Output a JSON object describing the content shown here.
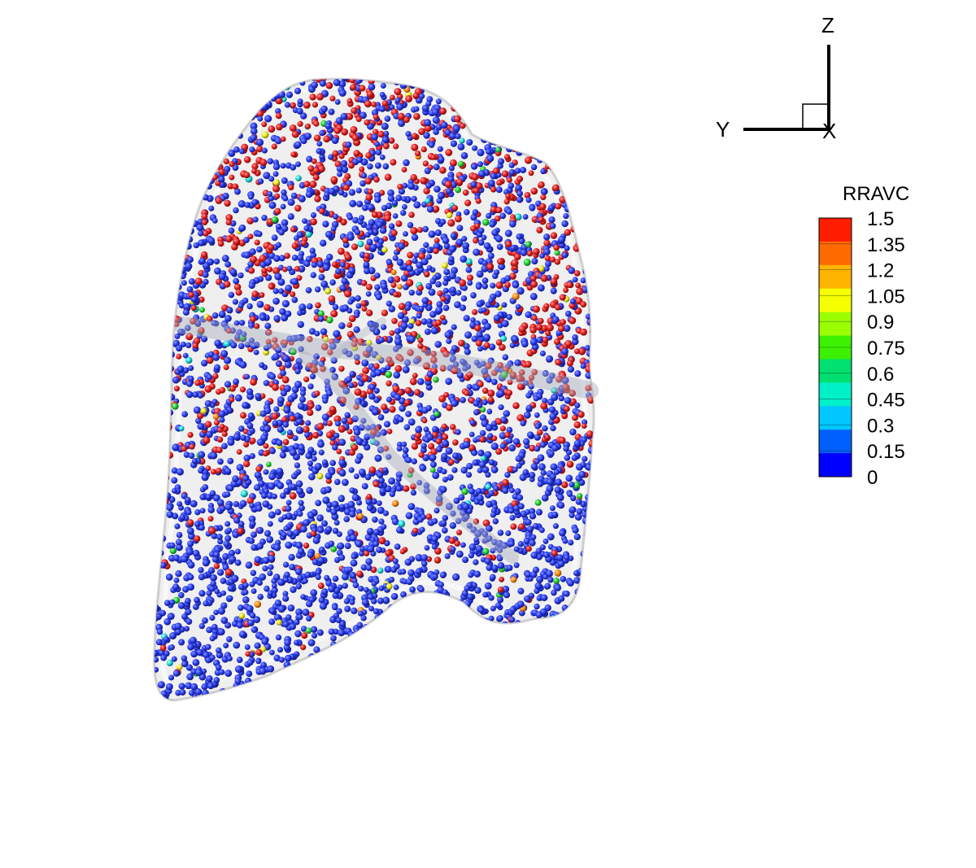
{
  "scene": {
    "background": "#ffffff",
    "shell_color": "#d9d9d9",
    "fissure_color": "#9aa0ad",
    "particle_palette": {
      "blue": "#2233ee",
      "red": "#e02222",
      "green": "#22cc44",
      "cyan": "#22dddd",
      "yellow": "#eeee22",
      "orange": "#ff8800"
    }
  },
  "axes_triad": {
    "z_label": "Z",
    "y_label": "Y",
    "x_label": "X"
  },
  "legend": {
    "title": "RRAVC",
    "ticks": [
      "1.5",
      "1.35",
      "1.2",
      "1.05",
      "0.9",
      "0.75",
      "0.6",
      "0.45",
      "0.3",
      "0.15",
      "0"
    ],
    "colors": [
      "#ff1e00",
      "#ff6a00",
      "#ffb400",
      "#f5ff00",
      "#9cff00",
      "#3cf000",
      "#00e070",
      "#00f0c8",
      "#00c8ff",
      "#0060ff",
      "#0000ff"
    ]
  }
}
